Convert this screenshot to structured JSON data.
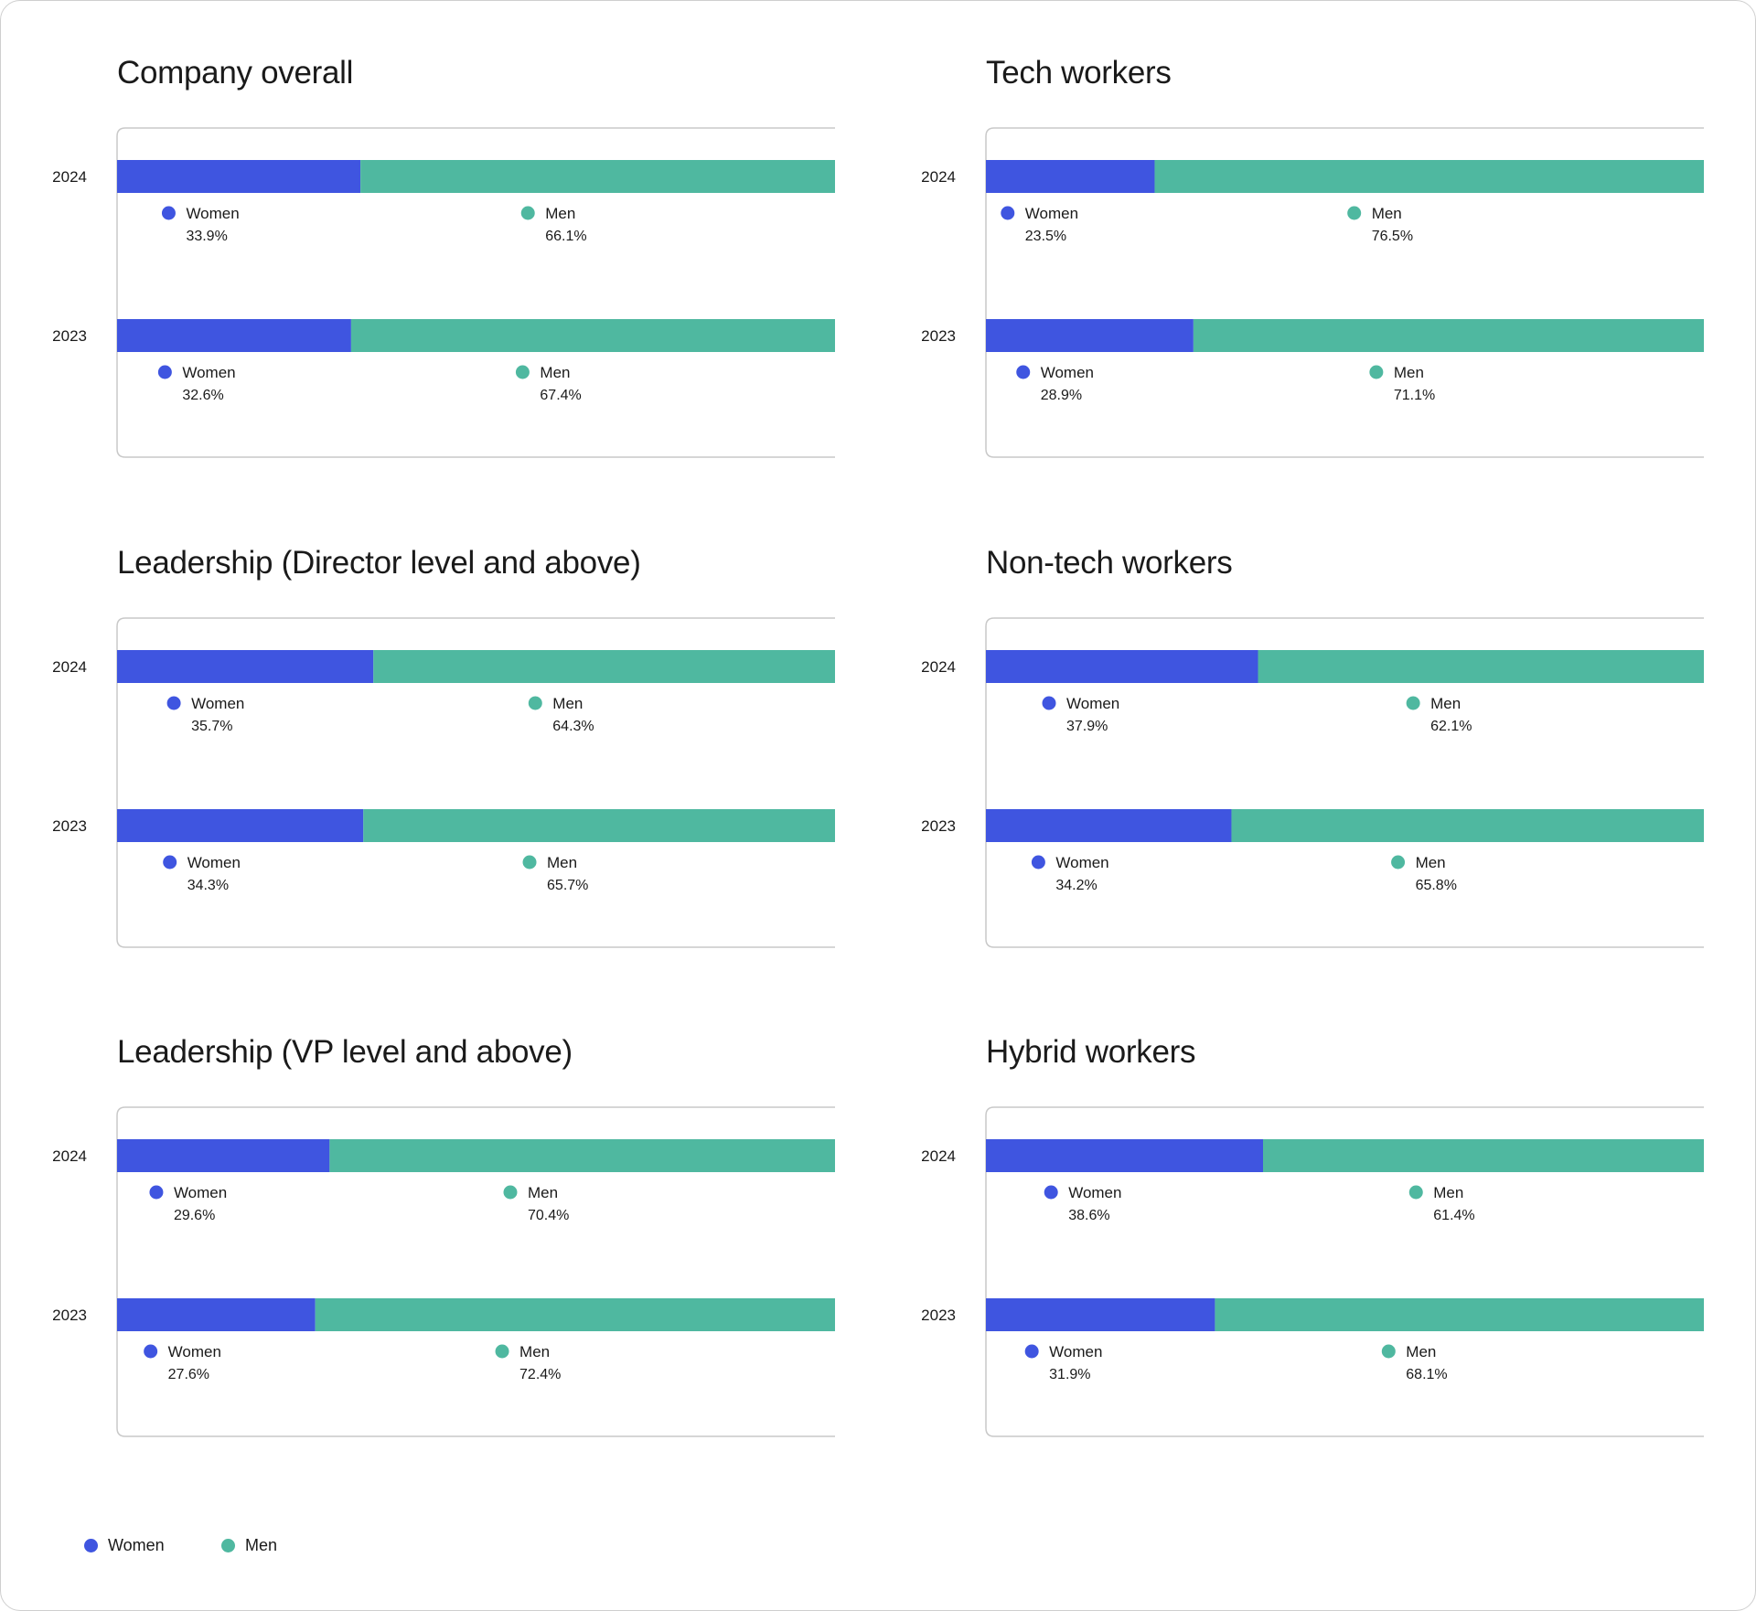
{
  "colors": {
    "women": "#3f55e0",
    "men": "#4fb8a0",
    "frame": "#c9c9c9",
    "text": "#1a1a1a"
  },
  "legend": {
    "women_label": "Women",
    "men_label": "Men"
  },
  "chart_data": [
    {
      "type": "bar",
      "orientation": "horizontal-stacked-100",
      "title": "Company overall",
      "categories": [
        "2024",
        "2023"
      ],
      "series": [
        {
          "name": "Women",
          "values": [
            33.9,
            32.6
          ]
        },
        {
          "name": "Men",
          "values": [
            66.1,
            67.4
          ]
        }
      ],
      "value_labels": {
        "Women": [
          "33.9%",
          "32.6%"
        ],
        "Men": [
          "66.1%",
          "67.4%"
        ]
      },
      "xlim": [
        0,
        100
      ],
      "grid": false,
      "legend_position": "bottom-left"
    },
    {
      "type": "bar",
      "orientation": "horizontal-stacked-100",
      "title": "Tech workers",
      "categories": [
        "2024",
        "2023"
      ],
      "series": [
        {
          "name": "Women",
          "values": [
            23.5,
            28.9
          ]
        },
        {
          "name": "Men",
          "values": [
            76.5,
            71.1
          ]
        }
      ],
      "value_labels": {
        "Women": [
          "23.5%",
          "28.9%"
        ],
        "Men": [
          "76.5%",
          "71.1%"
        ]
      },
      "xlim": [
        0,
        100
      ],
      "grid": false,
      "legend_position": "bottom-left"
    },
    {
      "type": "bar",
      "orientation": "horizontal-stacked-100",
      "title": "Leadership (Director level and above)",
      "categories": [
        "2024",
        "2023"
      ],
      "series": [
        {
          "name": "Women",
          "values": [
            35.7,
            34.3
          ]
        },
        {
          "name": "Men",
          "values": [
            64.3,
            65.7
          ]
        }
      ],
      "value_labels": {
        "Women": [
          "35.7%",
          "34.3%"
        ],
        "Men": [
          "64.3%",
          "65.7%"
        ]
      },
      "xlim": [
        0,
        100
      ],
      "grid": false,
      "legend_position": "bottom-left"
    },
    {
      "type": "bar",
      "orientation": "horizontal-stacked-100",
      "title": "Non-tech workers",
      "categories": [
        "2024",
        "2023"
      ],
      "series": [
        {
          "name": "Women",
          "values": [
            37.9,
            34.2
          ]
        },
        {
          "name": "Men",
          "values": [
            62.1,
            65.8
          ]
        }
      ],
      "value_labels": {
        "Women": [
          "37.9%",
          "34.2%"
        ],
        "Men": [
          "62.1%",
          "65.8%"
        ]
      },
      "xlim": [
        0,
        100
      ],
      "grid": false,
      "legend_position": "bottom-left"
    },
    {
      "type": "bar",
      "orientation": "horizontal-stacked-100",
      "title": "Leadership (VP level and above)",
      "categories": [
        "2024",
        "2023"
      ],
      "series": [
        {
          "name": "Women",
          "values": [
            29.6,
            27.6
          ]
        },
        {
          "name": "Men",
          "values": [
            70.4,
            72.4
          ]
        }
      ],
      "value_labels": {
        "Women": [
          "29.6%",
          "27.6%"
        ],
        "Men": [
          "70.4%",
          "72.4%"
        ]
      },
      "xlim": [
        0,
        100
      ],
      "grid": false,
      "legend_position": "bottom-left"
    },
    {
      "type": "bar",
      "orientation": "horizontal-stacked-100",
      "title": "Hybrid workers",
      "categories": [
        "2024",
        "2023"
      ],
      "series": [
        {
          "name": "Women",
          "values": [
            38.6,
            31.9
          ]
        },
        {
          "name": "Men",
          "values": [
            61.4,
            68.1
          ]
        }
      ],
      "value_labels": {
        "Women": [
          "38.6%",
          "31.9%"
        ],
        "Men": [
          "61.4%",
          "68.1%"
        ]
      },
      "xlim": [
        0,
        100
      ],
      "grid": false,
      "legend_position": "bottom-left"
    }
  ]
}
